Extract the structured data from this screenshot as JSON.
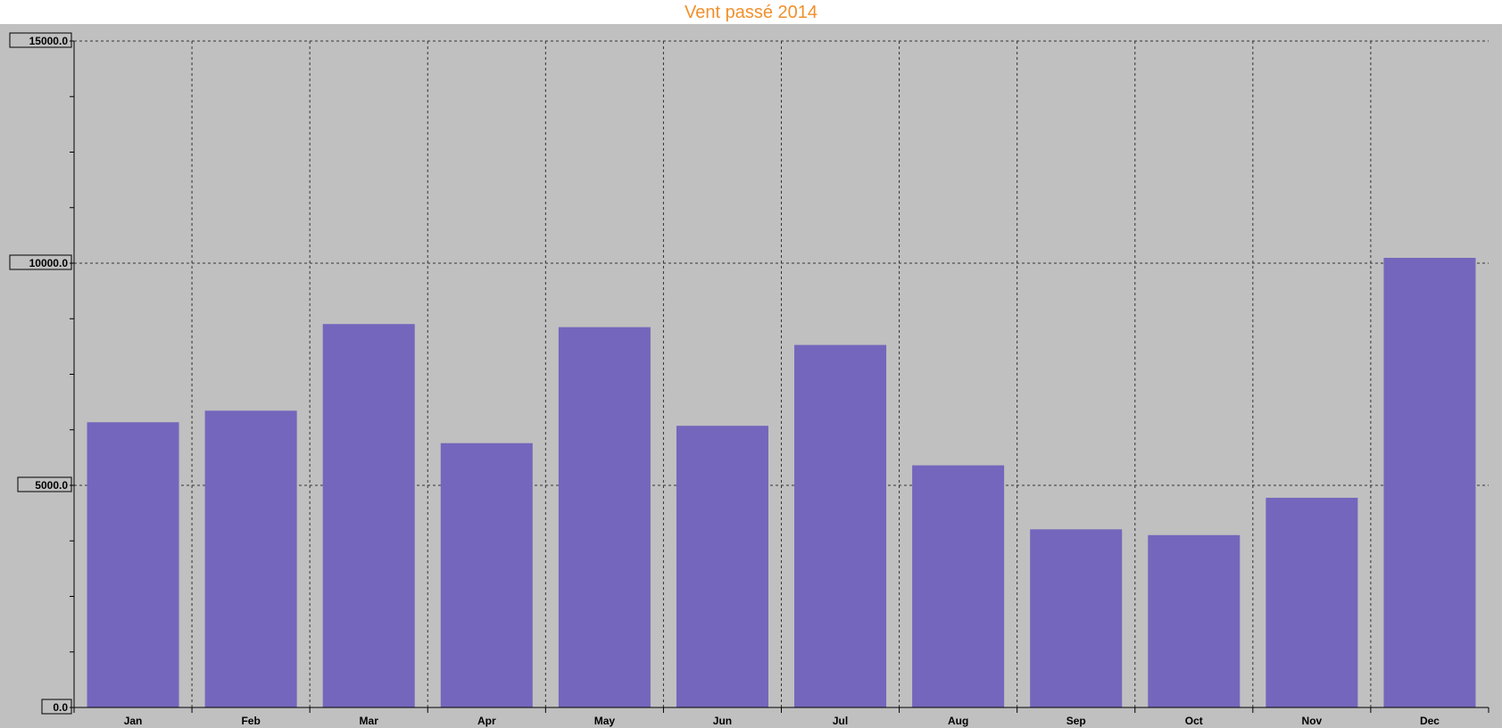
{
  "chart_data": {
    "type": "bar",
    "title": "Vent passé 2014",
    "categories": [
      "Jan",
      "Feb",
      "Mar",
      "Apr",
      "May",
      "Jun",
      "Jul",
      "Aug",
      "Sep",
      "Oct",
      "Nov",
      "Dec"
    ],
    "values": [
      6420,
      6680,
      8630,
      5950,
      8560,
      6340,
      8160,
      5450,
      4010,
      3880,
      4720,
      10120
    ],
    "ylim": [
      0,
      15000
    ],
    "yticks": [
      "0.0",
      "5000.0",
      "10000.0",
      "15000.0"
    ],
    "grid": true,
    "colors": {
      "bar": "#7466bc",
      "title": "#f0902c",
      "plot_background": "#c0c0c0",
      "grid": "#333333"
    }
  }
}
